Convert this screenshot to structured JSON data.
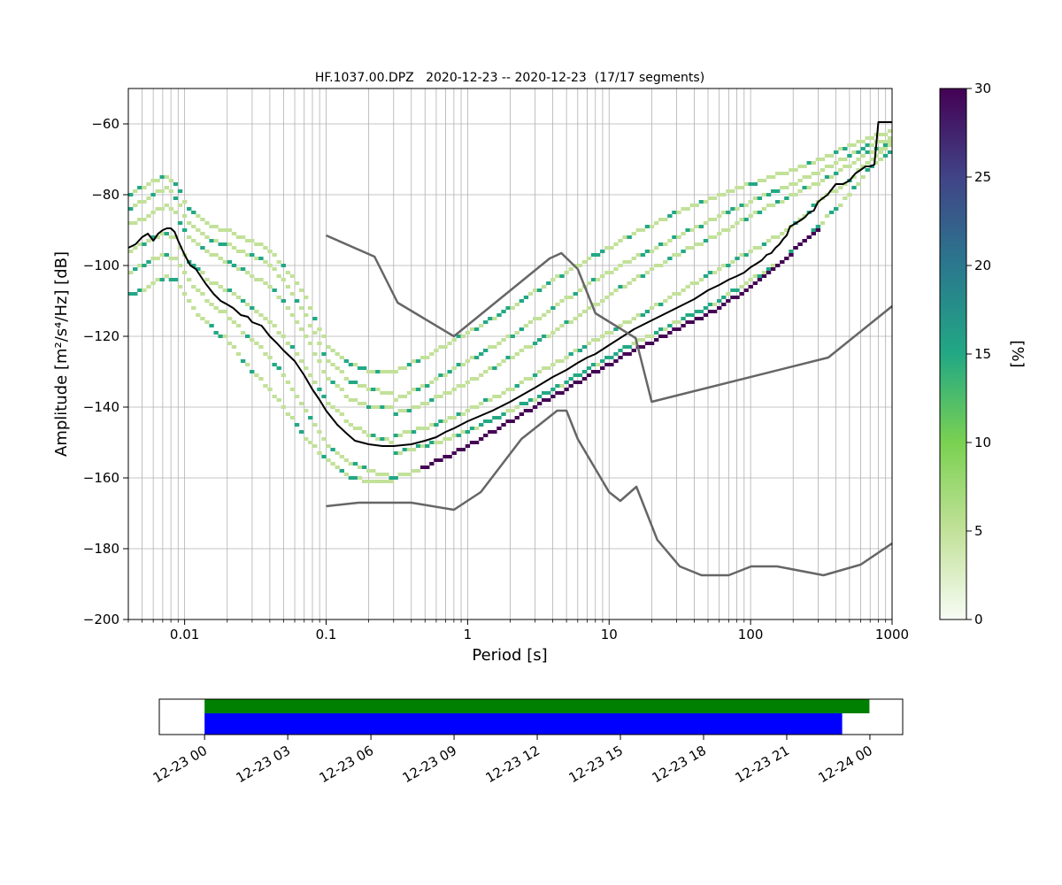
{
  "chart_data": [
    {
      "type": "heatmap",
      "title": "HF.1037.00.DPZ   2020-12-23 -- 2020-12-23  (17/17 segments)",
      "xlabel": "Period [s]",
      "ylabel": "Amplitude [m²/s⁴/Hz] [dB]",
      "xscale": "log",
      "xlim": [
        0.004,
        1000
      ],
      "ylim": [
        -200,
        -50
      ],
      "grid": true,
      "x_ticks": [
        {
          "value": 0.01,
          "label": "0.01"
        },
        {
          "value": 0.1,
          "label": "0.1"
        },
        {
          "value": 1,
          "label": "1"
        },
        {
          "value": 10,
          "label": "10"
        },
        {
          "value": 100,
          "label": "100"
        },
        {
          "value": 1000,
          "label": "1000"
        }
      ],
      "y_ticks": [
        {
          "value": -60,
          "label": "−60"
        },
        {
          "value": -80,
          "label": "−80"
        },
        {
          "value": -100,
          "label": "−100"
        },
        {
          "value": -120,
          "label": "−120"
        },
        {
          "value": -140,
          "label": "−140"
        },
        {
          "value": -160,
          "label": "−160"
        },
        {
          "value": -180,
          "label": "−180"
        },
        {
          "value": -200,
          "label": "−200"
        }
      ],
      "colorbar": {
        "label": "[%]",
        "range": [
          0,
          30
        ],
        "ticks": [
          {
            "value": 0,
            "label": "0"
          },
          {
            "value": 5,
            "label": "5"
          },
          {
            "value": 10,
            "label": "10"
          },
          {
            "value": 15,
            "label": "15"
          },
          {
            "value": 20,
            "label": "20"
          },
          {
            "value": 25,
            "label": "25"
          },
          {
            "value": 30,
            "label": "30"
          }
        ],
        "colors": [
          "#f7fcf5",
          "#c2e199",
          "#7ad151",
          "#22a884",
          "#2a788e",
          "#414487",
          "#440154"
        ]
      },
      "series": [
        {
          "role": "mean",
          "color": "#000000",
          "x": [
            0.004,
            0.0045,
            0.005,
            0.0055,
            0.006,
            0.0065,
            0.007,
            0.0075,
            0.008,
            0.0085,
            0.009,
            0.01,
            0.011,
            0.012,
            0.014,
            0.016,
            0.018,
            0.02,
            0.022,
            0.025,
            0.028,
            0.03,
            0.035,
            0.04,
            0.045,
            0.05,
            0.06,
            0.07,
            0.08,
            0.09,
            0.1,
            0.12,
            0.14,
            0.16,
            0.2,
            0.25,
            0.3,
            0.4,
            0.5,
            0.6,
            0.7,
            0.8,
            1,
            1.5,
            2,
            3,
            4,
            5,
            6,
            7,
            8,
            10,
            15,
            20,
            30,
            40,
            50,
            60,
            70,
            80,
            90,
            100,
            110,
            120,
            130,
            140,
            150,
            160,
            170,
            180,
            190,
            200,
            220,
            240,
            260,
            280,
            300,
            350,
            400,
            450,
            500,
            550,
            600,
            650,
            700,
            750,
            800,
            900,
            1000
          ],
          "y": [
            -95,
            -94,
            -92,
            -91,
            -93,
            -91,
            -90,
            -89.5,
            -89.5,
            -90.5,
            -93,
            -97,
            -100,
            -101,
            -105,
            -108,
            -110,
            -111,
            -112,
            -114,
            -114.5,
            -116,
            -117,
            -120,
            -122,
            -124,
            -127,
            -131,
            -135,
            -138,
            -141,
            -145,
            -147.5,
            -149.5,
            -150.5,
            -151,
            -151,
            -150.5,
            -149.5,
            -148.5,
            -147,
            -146,
            -144,
            -141,
            -138.5,
            -134.5,
            -131.5,
            -129.5,
            -127.5,
            -126,
            -125,
            -122.5,
            -118,
            -115.5,
            -112,
            -109.5,
            -107,
            -105.5,
            -104,
            -103,
            -102,
            -100.5,
            -99.5,
            -98.5,
            -97,
            -96.5,
            -95,
            -94,
            -92.5,
            -91.5,
            -89,
            -88.5,
            -87.5,
            -86.5,
            -85,
            -84.5,
            -82,
            -80,
            -77,
            -77,
            -76,
            -74,
            -73,
            -72,
            -72,
            -71.5,
            -59.5,
            -59.5,
            -59.5
          ]
        },
        {
          "role": "model",
          "color": "#666666",
          "x": [
            0.1,
            0.22,
            0.32,
            0.8,
            3.8,
            4.6,
            6,
            8,
            15.4,
            20,
            354,
            1000
          ],
          "y": [
            -91.5,
            -97.5,
            -110.5,
            -120,
            -98,
            -96.5,
            -101,
            -113.5,
            -120.5,
            -138.5,
            -126,
            -111.5
          ]
        },
        {
          "role": "model",
          "color": "#666666",
          "x": [
            0.1,
            0.17,
            0.4,
            0.8,
            1.24,
            2.4,
            4.3,
            5,
            6,
            10,
            12,
            15.6,
            21.9,
            31.6,
            45,
            70,
            101,
            154,
            328,
            600,
            1000
          ],
          "y": [
            -168,
            -167,
            -167,
            -169,
            -164,
            -149,
            -141,
            -141,
            -149,
            -164,
            -166.5,
            -162.5,
            -177.5,
            -185,
            -187.5,
            -187.5,
            -185,
            -185,
            -187.5,
            -184.5,
            -178.5
          ]
        }
      ],
      "pdf_bands": [
        {
          "name": "A",
          "x": [
            0.004,
            0.005,
            0.006,
            0.0075,
            0.0085,
            0.01,
            0.012,
            0.016,
            0.02,
            0.025,
            0.03,
            0.04,
            0.05,
            0.07,
            0.1,
            0.15,
            0.2,
            0.3
          ],
          "y": [
            -80,
            -78,
            -76,
            -75,
            -76,
            -82,
            -86,
            -89,
            -90,
            -92,
            -93,
            -96,
            -100,
            -108,
            -122,
            -128,
            -130,
            -130
          ]
        },
        {
          "name": "B",
          "x": [
            0.004,
            0.005,
            0.006,
            0.0075,
            0.0085,
            0.01,
            0.012,
            0.016,
            0.02,
            0.025,
            0.03,
            0.04,
            0.05,
            0.07,
            0.1,
            0.15,
            0.2,
            0.3
          ],
          "y": [
            -84,
            -82,
            -80,
            -78,
            -80,
            -86,
            -90,
            -93,
            -94,
            -96,
            -97,
            -100,
            -104,
            -113,
            -126,
            -133,
            -135,
            -136
          ]
        },
        {
          "name": "C",
          "x": [
            0.004,
            0.005,
            0.006,
            0.0075,
            0.0085,
            0.01,
            0.012,
            0.016,
            0.02,
            0.025,
            0.03,
            0.04,
            0.05,
            0.07,
            0.1,
            0.15,
            0.2,
            0.3
          ],
          "y": [
            -88,
            -87,
            -85,
            -83,
            -85,
            -90,
            -94,
            -97,
            -99,
            -101,
            -103,
            -106,
            -110,
            -119,
            -131,
            -138,
            -140,
            -140
          ]
        },
        {
          "name": "D",
          "x": [
            0.004,
            0.005,
            0.006,
            0.0075,
            0.0085,
            0.01,
            0.012,
            0.016,
            0.02,
            0.025,
            0.03,
            0.04,
            0.05,
            0.07,
            0.1,
            0.15,
            0.2,
            0.3
          ],
          "y": [
            -96,
            -94,
            -92,
            -91,
            -92,
            -97,
            -101,
            -105,
            -107,
            -110,
            -112,
            -116,
            -120,
            -128,
            -138,
            -145,
            -148,
            -150
          ]
        },
        {
          "name": "E",
          "x": [
            0.004,
            0.005,
            0.006,
            0.0075,
            0.0085,
            0.01,
            0.012,
            0.016,
            0.02,
            0.025,
            0.03,
            0.04,
            0.05,
            0.07,
            0.1,
            0.15,
            0.2,
            0.3
          ],
          "y": [
            -102,
            -100,
            -98,
            -97,
            -98,
            -102,
            -107,
            -111,
            -114,
            -118,
            -121,
            -126,
            -131,
            -140,
            -150,
            -156,
            -158,
            -160
          ]
        },
        {
          "name": "F",
          "x": [
            0.004,
            0.005,
            0.006,
            0.0075,
            0.0085,
            0.01,
            0.012,
            0.016,
            0.02,
            0.025,
            0.03,
            0.04,
            0.05,
            0.07,
            0.1,
            0.15,
            0.2,
            0.3
          ],
          "y": [
            -108,
            -107,
            -105,
            -103,
            -104,
            -108,
            -113,
            -118,
            -121,
            -126,
            -130,
            -135,
            -140,
            -148,
            -155,
            -160,
            -161,
            -161
          ]
        },
        {
          "name": "G",
          "x": [
            0.3,
            0.5,
            1,
            2,
            4,
            8,
            15,
            30,
            60,
            100,
            200,
            400,
            700,
            1000
          ],
          "y": [
            -130,
            -126,
            -119,
            -112,
            -104,
            -97,
            -91,
            -85,
            -80,
            -77,
            -73,
            -68,
            -64,
            -62
          ]
        },
        {
          "name": "H",
          "x": [
            0.3,
            0.5,
            1,
            2,
            4,
            8,
            15,
            30,
            60,
            100,
            200,
            400,
            700,
            1000
          ],
          "y": [
            -138,
            -134,
            -127,
            -120,
            -112,
            -104,
            -98,
            -92,
            -86,
            -82,
            -77,
            -71,
            -66,
            -64
          ]
        },
        {
          "name": "I",
          "x": [
            0.3,
            0.5,
            1,
            2,
            4,
            8,
            15,
            30,
            60,
            100,
            200,
            400,
            700,
            1000
          ],
          "y": [
            -142,
            -139,
            -133,
            -126,
            -119,
            -111,
            -104,
            -97,
            -91,
            -86,
            -80,
            -74,
            -68,
            -65
          ]
        },
        {
          "name": "J",
          "x": [
            0.3,
            0.5,
            1,
            2,
            4,
            8,
            15,
            30,
            60,
            100,
            200,
            300,
            500,
            700,
            1000
          ],
          "y": [
            -148,
            -146,
            -141,
            -135,
            -128,
            -121,
            -115,
            -108,
            -101,
            -96,
            -89,
            -82,
            -76,
            -70,
            -66
          ]
        },
        {
          "name": "K",
          "x": [
            0.3,
            0.5,
            1,
            2,
            4,
            8,
            15,
            30,
            60,
            100,
            150,
            200,
            300,
            500,
            700,
            1000
          ],
          "y": [
            -153,
            -151,
            -147,
            -141,
            -135,
            -128,
            -122,
            -116,
            -110,
            -104,
            -100,
            -96,
            -89,
            -80,
            -72,
            -68
          ]
        },
        {
          "name": "L",
          "x": [
            0.3,
            0.5,
            1,
            2,
            4,
            8,
            15,
            30,
            60,
            100,
            150,
            200,
            300
          ],
          "y": [
            -160,
            -157,
            -151,
            -144,
            -137,
            -130,
            -124,
            -118,
            -112,
            -106,
            -101,
            -96,
            -90
          ]
        }
      ]
    },
    {
      "type": "bar",
      "title": "",
      "xlim": [
        "2020-12-22 22:22",
        "2020-12-24 01:11"
      ],
      "tick_labels": [
        "12-23 00",
        "12-23 03",
        "12-23 06",
        "12-23 09",
        "12-23 12",
        "12-23 15",
        "12-23 18",
        "12-23 21",
        "12-24 00"
      ],
      "series": [
        {
          "color": "#008000",
          "start": "2020-12-23 00:00",
          "end": "2020-12-23 23:59"
        },
        {
          "color": "#0000ff",
          "start": "2020-12-23 00:00",
          "end": "2020-12-23 23:00"
        }
      ]
    }
  ]
}
